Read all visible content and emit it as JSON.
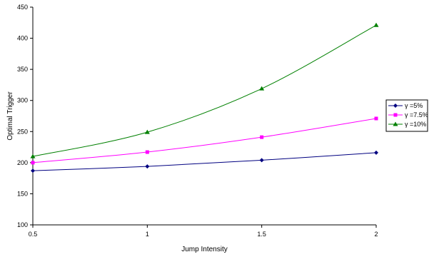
{
  "chart_data": {
    "type": "line",
    "title": "",
    "xlabel": "Jump Intensity",
    "ylabel": "Optimal Trigger",
    "x": [
      0.5,
      1,
      1.5,
      2
    ],
    "x_tick_labels": [
      "0.5",
      "1",
      "1.5",
      "2"
    ],
    "xlim": [
      0.5,
      2
    ],
    "ylim": [
      100,
      450
    ],
    "y_ticks": [
      100,
      150,
      200,
      250,
      300,
      350,
      400,
      450
    ],
    "y_tick_labels": [
      "100",
      "150",
      "200",
      "250",
      "300",
      "350",
      "400",
      "450"
    ],
    "grid": false,
    "legend_position": "right",
    "series": [
      {
        "name": "γ  =5%",
        "color": "#000080",
        "marker": "diamond",
        "values": [
          187,
          194,
          204,
          216
        ]
      },
      {
        "name": "γ  =7.5%",
        "color": "#FF00FF",
        "marker": "square",
        "values": [
          200,
          217,
          241,
          271
        ]
      },
      {
        "name": "γ  =10%",
        "color": "#008000",
        "marker": "triangle",
        "values": [
          210,
          249,
          319,
          421
        ]
      }
    ]
  }
}
